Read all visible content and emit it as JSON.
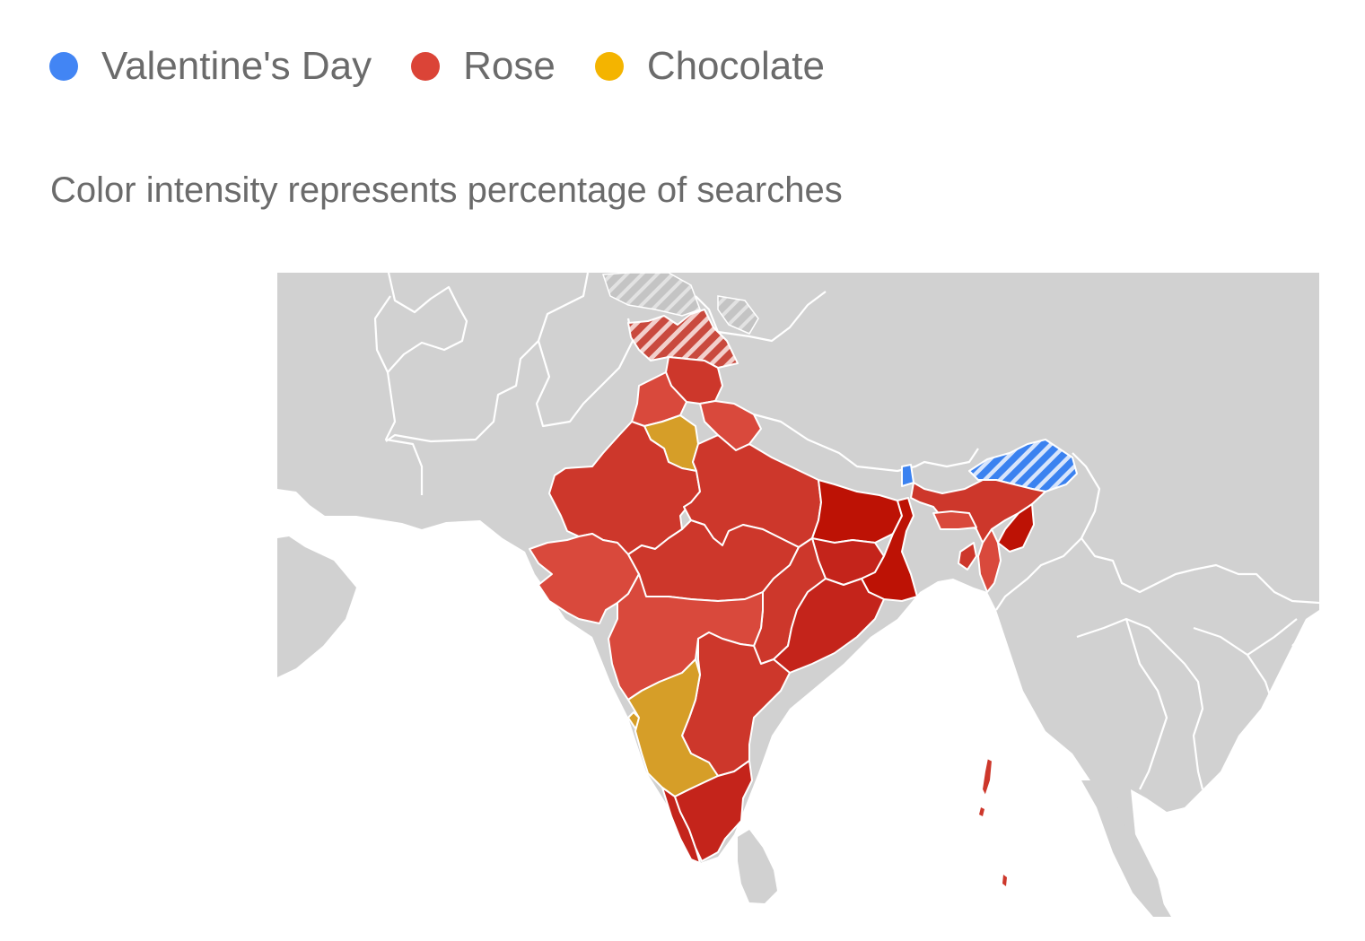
{
  "legend": {
    "items": [
      {
        "label": "Valentine's Day",
        "color": "#4285f4",
        "icon": "legend-dot"
      },
      {
        "label": "Rose",
        "color": "#db4437",
        "icon": "legend-dot"
      },
      {
        "label": "Chocolate",
        "color": "#f4b400",
        "icon": "legend-dot"
      }
    ]
  },
  "subtitle": "Color intensity represents percentage of searches",
  "map": {
    "region": "India",
    "colors": {
      "background_land": "#d1d1d1",
      "sea": "#ffffff",
      "border": "#ffffff",
      "rose_light": "#d9493c",
      "rose_medium": "#cd372b",
      "rose_strong": "#c4241b",
      "rose_darkest": "#bd1205",
      "chocolate": "#d69e28",
      "valentines": "#3b82f0"
    }
  }
}
